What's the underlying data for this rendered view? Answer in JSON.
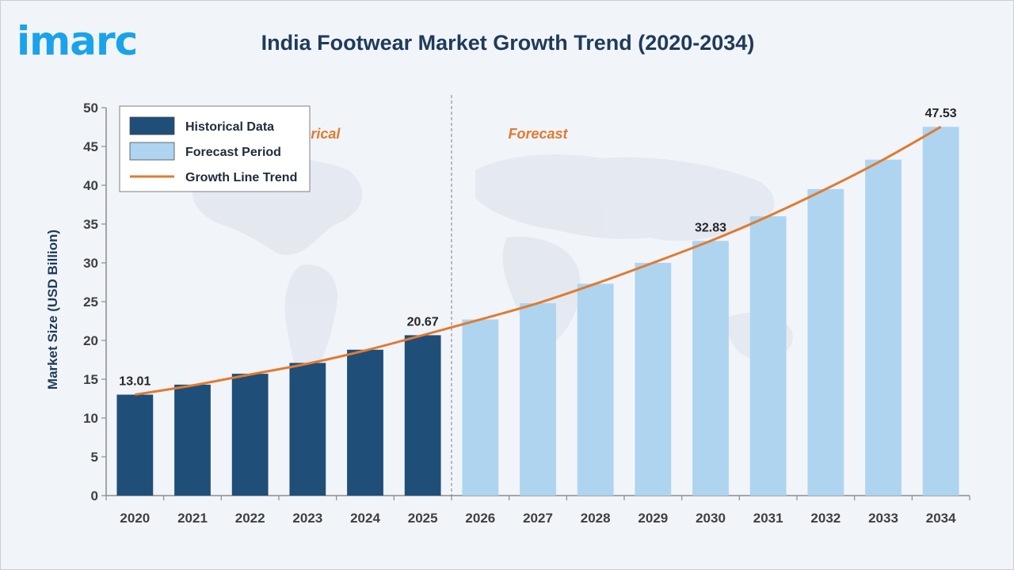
{
  "logo": {
    "text": "imarc",
    "color": "#1aa3e8"
  },
  "colors": {
    "historical": "#1f4e79",
    "forecast": "#aed4f0",
    "trend": "#e07b2f",
    "title": "#1f3b5a"
  },
  "chart_data": {
    "type": "bar",
    "title": "India Footwear Market Growth Trend (2020-2034)",
    "xlabel": "",
    "ylabel": "Market Size (USD Billion)",
    "ylim": [
      0,
      50
    ],
    "yticks": [
      "0",
      "5",
      "10",
      "15",
      "20",
      "25",
      "30",
      "35",
      "40",
      "45",
      "50"
    ],
    "grid": false,
    "legend_position": "top-left",
    "categories": [
      "2020",
      "2021",
      "2022",
      "2023",
      "2024",
      "2025",
      "2026",
      "2027",
      "2028",
      "2029",
      "2030",
      "2031",
      "2032",
      "2033",
      "2034"
    ],
    "series": [
      {
        "name": "Historical Data",
        "type": "bar",
        "values": [
          13.01,
          14.3,
          15.7,
          17.1,
          18.8,
          20.67,
          null,
          null,
          null,
          null,
          null,
          null,
          null,
          null,
          null
        ]
      },
      {
        "name": "Forecast Period",
        "type": "bar",
        "values": [
          null,
          null,
          null,
          null,
          null,
          null,
          22.7,
          24.8,
          27.3,
          30.0,
          32.83,
          36.0,
          39.5,
          43.3,
          47.53
        ]
      },
      {
        "name": "Growth Line Trend",
        "type": "line",
        "values": [
          13.01,
          14.2,
          15.6,
          17.0,
          18.7,
          20.67,
          22.7,
          24.8,
          27.3,
          30.0,
          32.83,
          36.0,
          39.5,
          43.3,
          47.53
        ]
      }
    ],
    "data_labels": [
      {
        "category": "2020",
        "text": "13.01"
      },
      {
        "category": "2025",
        "text": "20.67"
      },
      {
        "category": "2030",
        "text": "32.83"
      },
      {
        "category": "2034",
        "text": "47.53"
      }
    ],
    "annotations": [
      {
        "text": "Historical",
        "category": "2023"
      },
      {
        "text": "Forecast",
        "category": "2027"
      }
    ],
    "divider_after_category": "2025"
  }
}
